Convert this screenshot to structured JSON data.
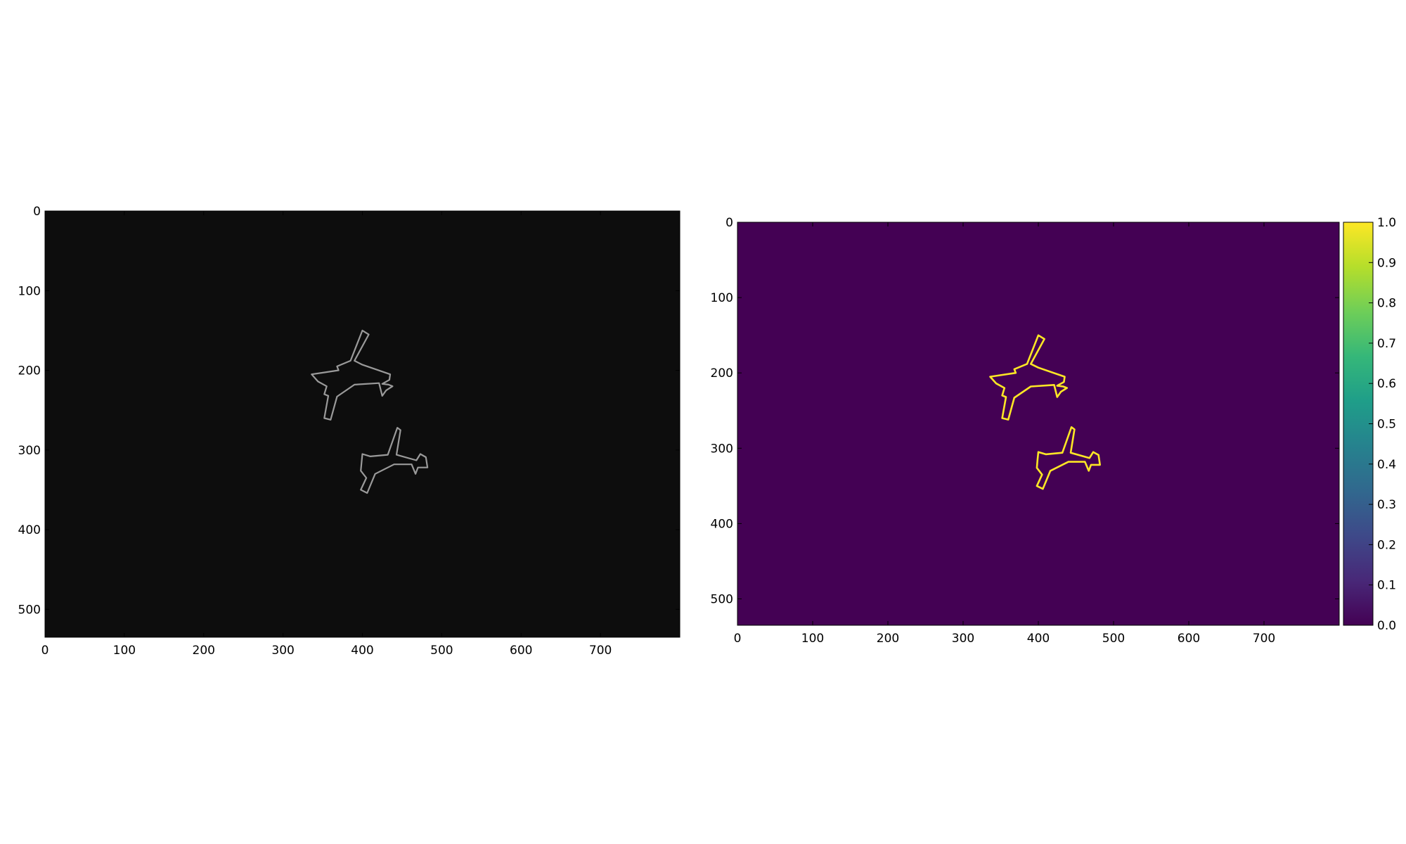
{
  "chart_data": [
    {
      "type": "image",
      "colormap": "gray",
      "xlim": [
        0,
        800
      ],
      "ylim": [
        535,
        0
      ],
      "x_ticks": [
        0,
        100,
        200,
        300,
        400,
        500,
        600,
        700
      ],
      "y_ticks": [
        0,
        100,
        200,
        300,
        400,
        500
      ],
      "background_color": "#0d0d0d",
      "outline_color": "#9a9a9a",
      "objects": [
        {
          "name": "airplane-upper",
          "points": [
            [
              400,
              150
            ],
            [
              408,
              155
            ],
            [
              390,
              188
            ],
            [
              400,
              193
            ],
            [
              435,
              205
            ],
            [
              434,
              212
            ],
            [
              425,
              217
            ],
            [
              433,
              218
            ],
            [
              438,
              220
            ],
            [
              430,
              225
            ],
            [
              425,
              232
            ],
            [
              421,
              216
            ],
            [
              390,
              218
            ],
            [
              368,
              233
            ],
            [
              360,
              262
            ],
            [
              352,
              260
            ],
            [
              357,
              232
            ],
            [
              352,
              230
            ],
            [
              355,
              220
            ],
            [
              344,
              214
            ],
            [
              336,
              205
            ],
            [
              350,
              203
            ],
            [
              370,
              200
            ],
            [
              368,
              195
            ],
            [
              385,
              188
            ]
          ]
        },
        {
          "name": "airplane-lower",
          "points": [
            [
              444,
              272
            ],
            [
              448,
              275
            ],
            [
              443,
              306
            ],
            [
              468,
              313
            ],
            [
              473,
              305
            ],
            [
              480,
              309
            ],
            [
              482,
              322
            ],
            [
              470,
              322
            ],
            [
              467,
              330
            ],
            [
              462,
              318
            ],
            [
              440,
              318
            ],
            [
              416,
              330
            ],
            [
              406,
              354
            ],
            [
              398,
              350
            ],
            [
              405,
              335
            ],
            [
              398,
              326
            ],
            [
              399,
              315
            ],
            [
              400,
              305
            ],
            [
              410,
              308
            ],
            [
              432,
              306
            ]
          ]
        }
      ]
    },
    {
      "type": "heatmap",
      "colormap": "viridis",
      "xlim": [
        0,
        800
      ],
      "ylim": [
        535,
        0
      ],
      "x_ticks": [
        0,
        100,
        200,
        300,
        400,
        500,
        600,
        700
      ],
      "y_ticks": [
        0,
        100,
        200,
        300,
        400,
        500
      ],
      "background_color": "#440154",
      "outline_color": "#fde725",
      "colorbar": {
        "min": 0.0,
        "max": 1.0,
        "tick_labels": [
          "0.0",
          "0.1",
          "0.2",
          "0.3",
          "0.4",
          "0.5",
          "0.6",
          "0.7",
          "0.8",
          "0.9",
          "1.0"
        ],
        "stops": [
          "#440154",
          "#482878",
          "#3e4989",
          "#31688e",
          "#26828e",
          "#1f9e89",
          "#35b779",
          "#6ece58",
          "#b5de2b",
          "#fde725"
        ]
      },
      "objects": [
        {
          "name": "airplane-upper",
          "points": [
            [
              400,
              150
            ],
            [
              408,
              155
            ],
            [
              390,
              188
            ],
            [
              400,
              193
            ],
            [
              435,
              205
            ],
            [
              434,
              212
            ],
            [
              425,
              217
            ],
            [
              433,
              218
            ],
            [
              438,
              220
            ],
            [
              430,
              225
            ],
            [
              425,
              232
            ],
            [
              421,
              216
            ],
            [
              390,
              218
            ],
            [
              368,
              233
            ],
            [
              360,
              262
            ],
            [
              352,
              260
            ],
            [
              357,
              232
            ],
            [
              352,
              230
            ],
            [
              355,
              220
            ],
            [
              344,
              214
            ],
            [
              336,
              205
            ],
            [
              350,
              203
            ],
            [
              370,
              200
            ],
            [
              368,
              195
            ],
            [
              385,
              188
            ]
          ]
        },
        {
          "name": "airplane-lower",
          "points": [
            [
              444,
              272
            ],
            [
              448,
              275
            ],
            [
              443,
              306
            ],
            [
              468,
              313
            ],
            [
              473,
              305
            ],
            [
              480,
              309
            ],
            [
              482,
              322
            ],
            [
              470,
              322
            ],
            [
              467,
              330
            ],
            [
              462,
              318
            ],
            [
              440,
              318
            ],
            [
              416,
              330
            ],
            [
              406,
              354
            ],
            [
              398,
              350
            ],
            [
              405,
              335
            ],
            [
              398,
              326
            ],
            [
              399,
              315
            ],
            [
              400,
              305
            ],
            [
              410,
              308
            ],
            [
              432,
              306
            ]
          ]
        }
      ]
    }
  ]
}
